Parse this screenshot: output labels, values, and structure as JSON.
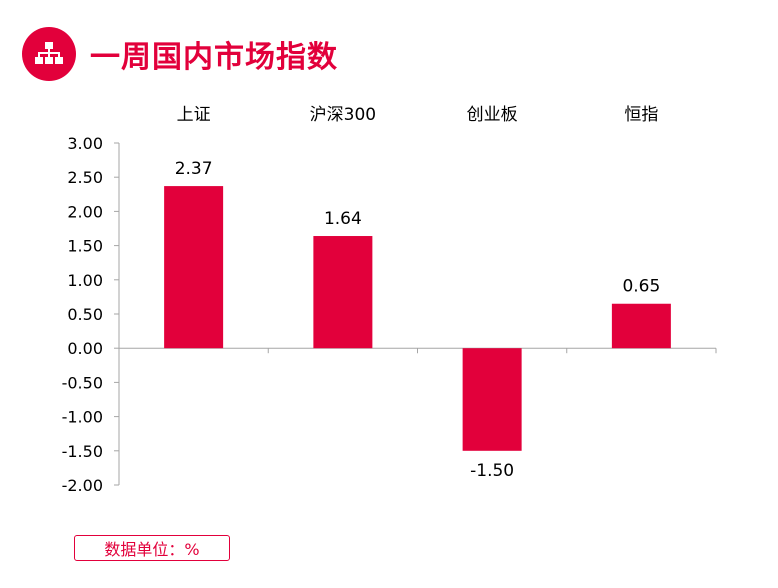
{
  "header": {
    "title": "一周国内市场指数",
    "icon": "hierarchy-icon",
    "accent_color": "#e2003b"
  },
  "chart_data": {
    "type": "bar",
    "title": "一周国内市场指数",
    "categories": [
      "上证",
      "沪深300",
      "创业板",
      "恒指"
    ],
    "values": [
      2.37,
      1.64,
      -1.5,
      0.65
    ],
    "data_labels": [
      "2.37",
      "1.64",
      "-1.50",
      "0.65"
    ],
    "ylim": [
      -2.0,
      3.0
    ],
    "yticks": [
      "3.00",
      "2.50",
      "2.00",
      "1.50",
      "1.00",
      "0.50",
      "0.00",
      "-0.50",
      "-1.00",
      "-1.50",
      "-2.00"
    ],
    "category_axis_position": "top",
    "xlabel": "",
    "ylabel": "",
    "bar_color": "#e2003b",
    "grid": false
  },
  "footer": {
    "unit_label": "数据单位：%"
  }
}
